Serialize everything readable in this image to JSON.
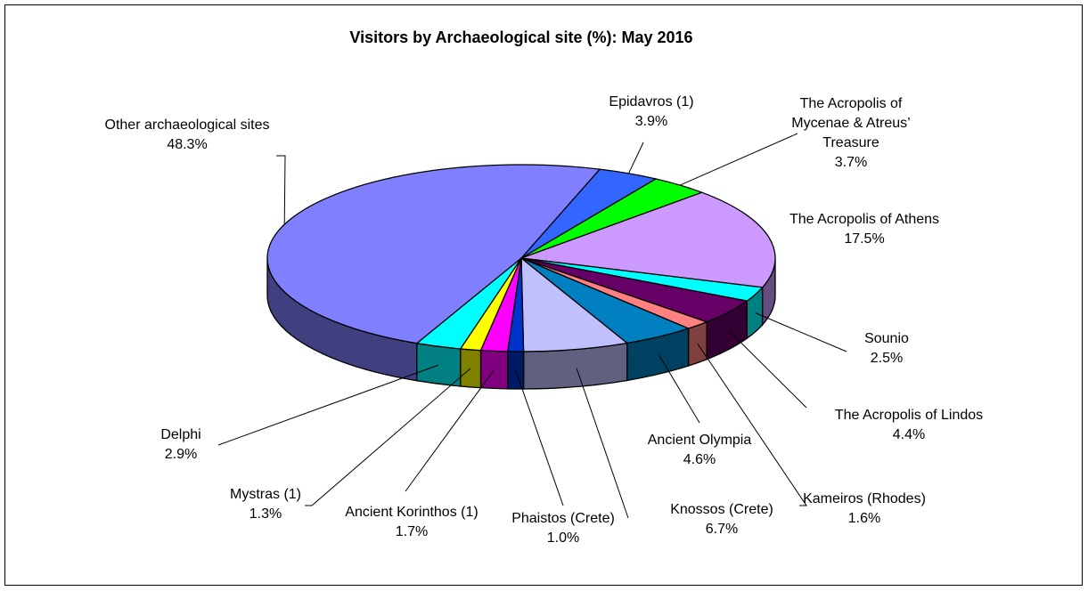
{
  "chart_data": {
    "type": "pie",
    "title": "Visitors by Archaeological site (%): May 2016",
    "categories": [
      "Epidavros (1)",
      "The Acropolis of Mycenae & Atreus’ Treasure",
      "The Acropolis of Athens",
      "Sounio",
      "The Acropolis of Lindos",
      "Kameiros (Rhodes)",
      "Ancient Olympia",
      "Knossos (Crete)",
      "Phaistos (Crete)",
      "Ancient Korinthos (1)",
      "Mystras (1)",
      "Delphi",
      "Other archaeological sites"
    ],
    "values": [
      3.9,
      3.7,
      17.5,
      2.5,
      4.4,
      1.6,
      4.6,
      6.7,
      1.0,
      1.7,
      1.3,
      2.9,
      48.3
    ],
    "value_labels": [
      "3.9%",
      "3.7%",
      "17.5%",
      "2.5%",
      "4.4%",
      "1.6%",
      "4.6%",
      "6.7%",
      "1.0%",
      "1.7%",
      "1.3%",
      "2.9%",
      "48.3%"
    ],
    "colors": [
      "#3366ff",
      "#00ff00",
      "#cc99ff",
      "#00ffff",
      "#660066",
      "#ff8080",
      "#0080c0",
      "#c0c0ff",
      "#0033cc",
      "#ff00ff",
      "#ffff00",
      "#00ffff",
      "#8080ff"
    ]
  }
}
